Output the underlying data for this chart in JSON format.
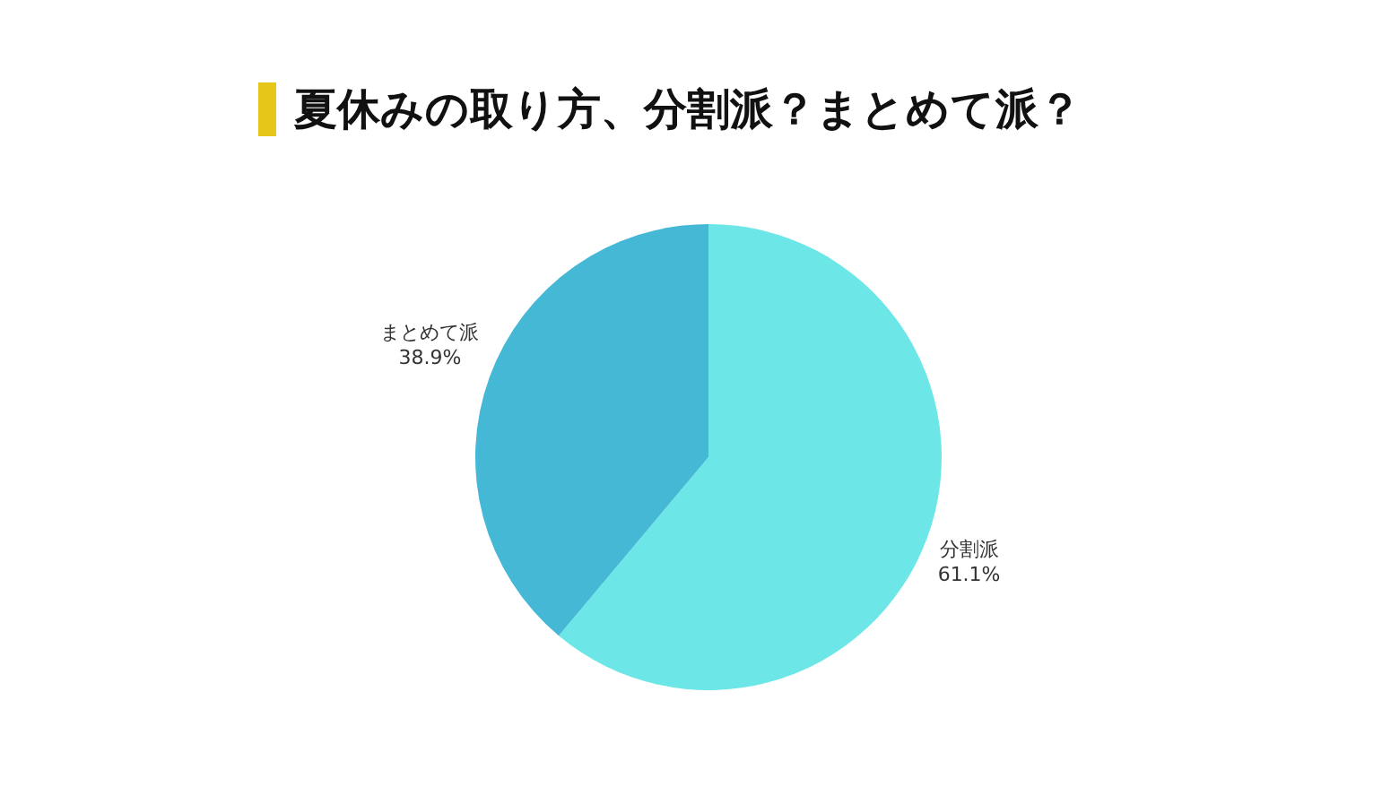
{
  "chart_data": {
    "type": "pie",
    "title": "夏休みの取り方、分割派？まとめて派？",
    "categories": [
      "分割派",
      "まとめて派"
    ],
    "values": [
      61.1,
      38.9
    ],
    "colors": [
      "#6ce6e6",
      "#45b8d6"
    ],
    "value_labels": [
      "61.1%",
      "38.9%"
    ],
    "legend": false
  }
}
